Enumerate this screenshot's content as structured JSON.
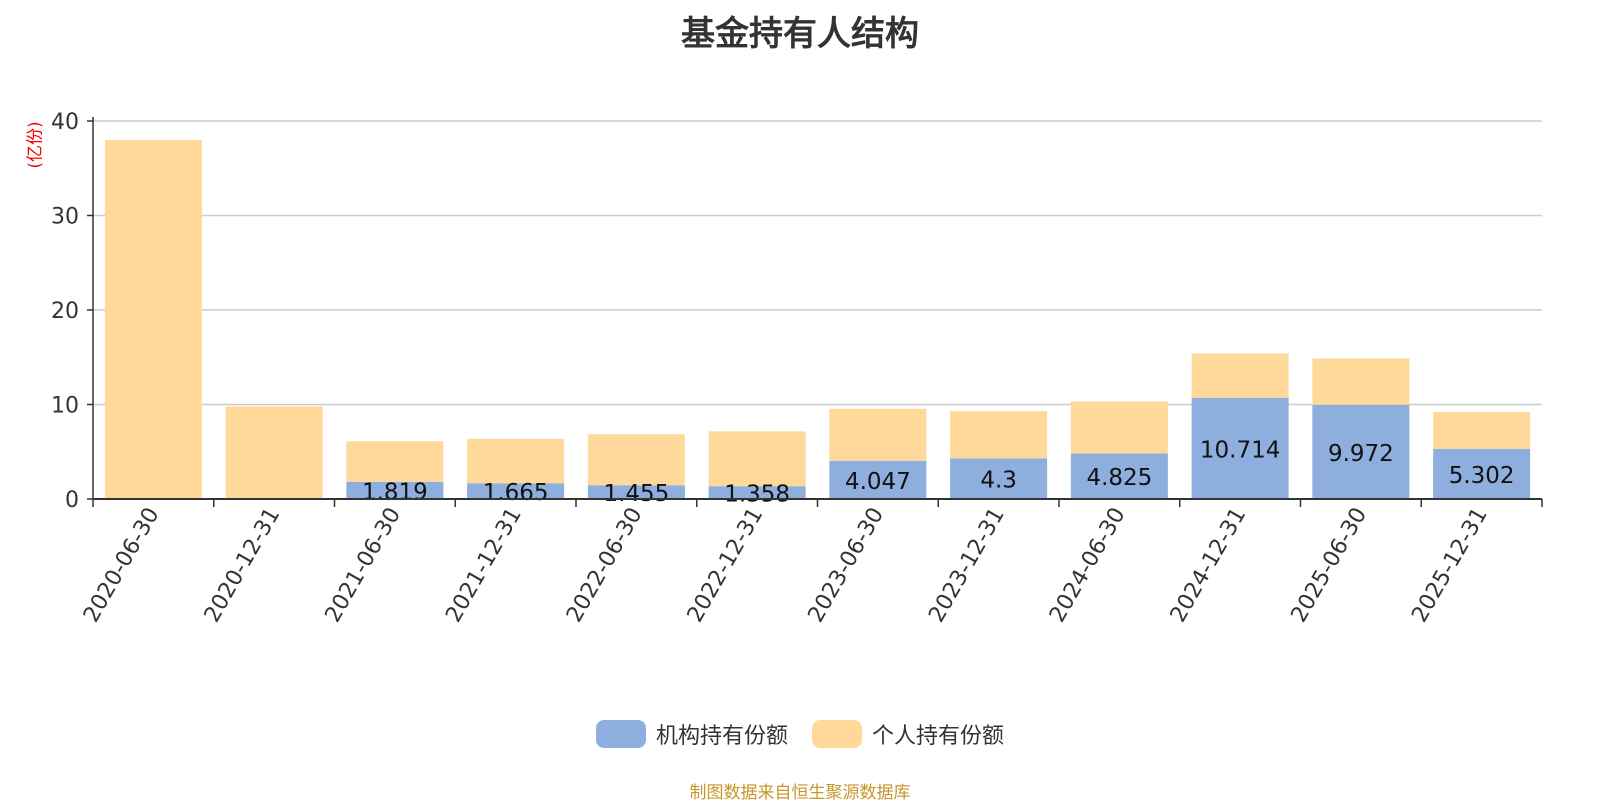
{
  "chart_data": {
    "type": "bar",
    "stacked": true,
    "title": "基金持有人结构",
    "ylabel": "(亿份)",
    "ylim": [
      0,
      40
    ],
    "yticks": [
      0,
      10,
      20,
      30,
      40
    ],
    "grid": true,
    "legend_position": "bottom",
    "categories": [
      "2020-06-30",
      "2020-12-31",
      "2021-06-30",
      "2021-12-31",
      "2022-06-30",
      "2022-12-31",
      "2023-06-30",
      "2023-12-31",
      "2024-06-30",
      "2024-12-31",
      "2025-06-30",
      "2025-12-31"
    ],
    "series": [
      {
        "name": "机构持有份额",
        "color": "#8eaedd",
        "values": [
          0,
          0,
          1.819,
          1.665,
          1.455,
          1.358,
          4.047,
          4.3,
          4.825,
          10.714,
          9.972,
          5.302
        ],
        "labels": [
          "",
          "",
          "1.819",
          "1.665",
          "1.455",
          "1.358",
          "4.047",
          "4.3",
          "4.825",
          "10.714",
          "9.972",
          "5.302"
        ]
      },
      {
        "name": "个人持有份额",
        "color": "#ffd999",
        "values": [
          38.0,
          9.8,
          4.3,
          4.7,
          5.4,
          5.8,
          5.5,
          5.0,
          5.5,
          4.7,
          4.9,
          3.9
        ]
      }
    ]
  },
  "source_note": "制图数据来自恒生聚源数据库"
}
